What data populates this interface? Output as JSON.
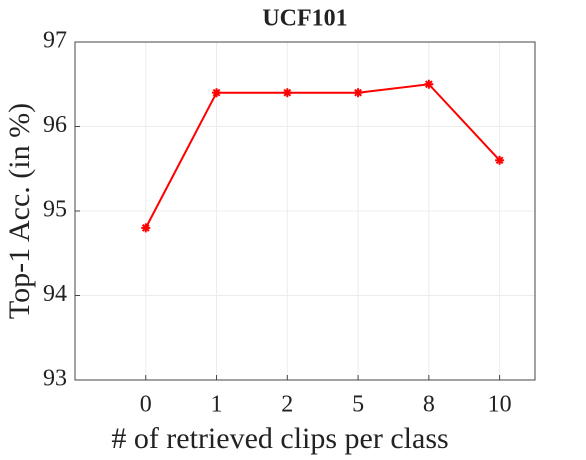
{
  "chart_data": {
    "type": "line",
    "title": "UCF101",
    "xlabel": "# of retrieved clips per class",
    "ylabel": "Top-1 Acc. (in %)",
    "categories": [
      "0",
      "1",
      "2",
      "5",
      "8",
      "10"
    ],
    "series": [
      {
        "name": "UCF101",
        "color": "#ff0000",
        "values": [
          94.8,
          96.4,
          96.4,
          96.4,
          96.5,
          95.6
        ]
      }
    ],
    "ylim": [
      93,
      97
    ],
    "yticks": [
      93,
      94,
      95,
      96,
      97
    ],
    "grid": true
  }
}
